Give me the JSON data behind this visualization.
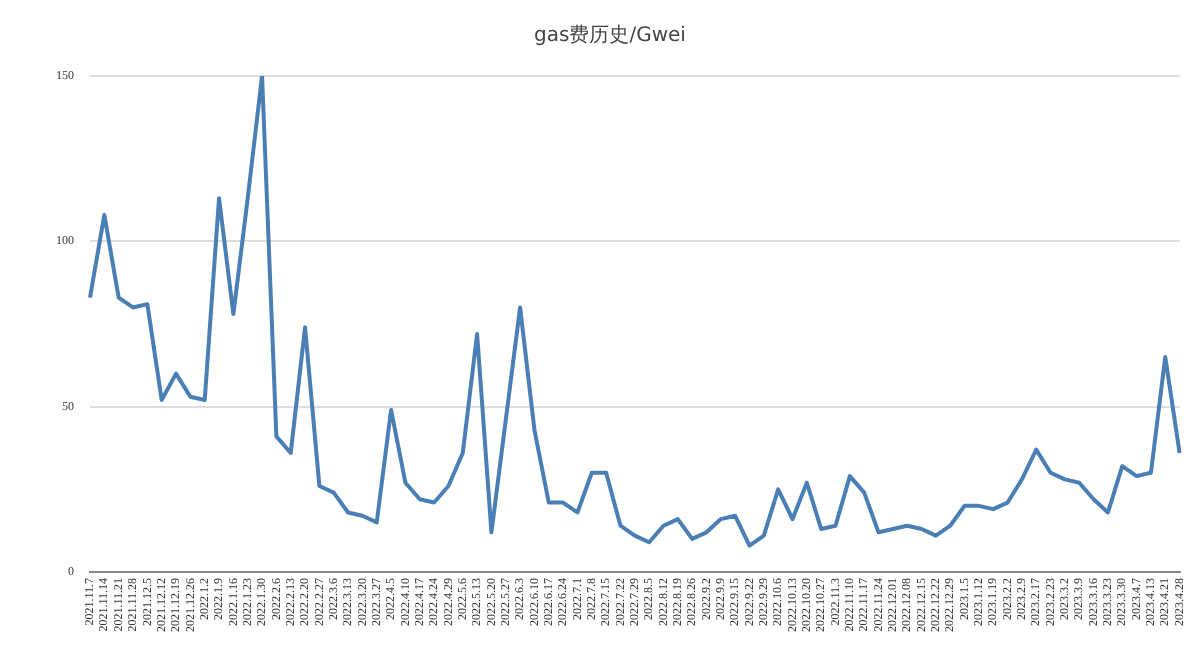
{
  "chart_data": {
    "type": "line",
    "title": "gas费历史/Gwei",
    "categories": [
      "2021.11.7",
      "2021.11.14",
      "2021.11.21",
      "2021.11.28",
      "2021.12.5",
      "2021.12.12",
      "2021.12.19",
      "2021.12.26",
      "2022.1.2",
      "2022.1.9",
      "2022.1.16",
      "2022.1.23",
      "2022.1.30",
      "2022.2.6",
      "2022.2.13",
      "2022.2.20",
      "2022.2.27",
      "2022.3.6",
      "2022.3.13",
      "2022.3.20",
      "2022.3.27",
      "2022.4.5",
      "2022.4.10",
      "2022.4.17",
      "2022.4.24",
      "2022.4.29",
      "2022.5.6",
      "2022.5.13",
      "2022.5.20",
      "2022.5.27",
      "2022.6.3",
      "2022.6.10",
      "2022.6.17",
      "2022.6.24",
      "2022.7.1",
      "2022.7.8",
      "2022.7.15",
      "2022.7.22",
      "2022.7.29",
      "2022.8.5",
      "2022.8.12",
      "2022.8.19",
      "2022.8.26",
      "2022.9.2",
      "2022.9.9",
      "2022.9.15",
      "2022.9.22",
      "2022.9.29",
      "2022.10.6",
      "2022.10.13",
      "2022.10.20",
      "2022.10.27",
      "2022.11.3",
      "2022.11.10",
      "2022.11.17",
      "2022.11.24",
      "2022.12.01",
      "2022.12.08",
      "2022.12.15",
      "2022.12.22",
      "2022.12.29",
      "2023.1.5",
      "2023.1.12",
      "2023.1.19",
      "2023.2.2",
      "2023.2.9",
      "2023.2.17",
      "2023.2.23",
      "2023.3.2",
      "2023.3.9",
      "2023.3.16",
      "2023.3.23",
      "2023.3.30",
      "2023.4.7",
      "2023.4.13",
      "2023.4.21",
      "2023.4.28"
    ],
    "series": [
      {
        "color": "#4a7fb5",
        "values": [
          83,
          108,
          83,
          80,
          81,
          52,
          60,
          53,
          52,
          113,
          78,
          113,
          150,
          41,
          36,
          74,
          26,
          24,
          18,
          17,
          15,
          49,
          27,
          22,
          21,
          26,
          36,
          72,
          12,
          46,
          80,
          43,
          21,
          21,
          18,
          30,
          30,
          14,
          11,
          9,
          14,
          16,
          10,
          12,
          16,
          17,
          8,
          11,
          25,
          16,
          27,
          13,
          14,
          29,
          24,
          12,
          13,
          14,
          13,
          11,
          14,
          20,
          20,
          19,
          21,
          28,
          37,
          30,
          28,
          27,
          22,
          18,
          32,
          29,
          30,
          65,
          36
        ]
      }
    ],
    "ylim": [
      0,
      150
    ],
    "yticks": [
      0,
      50,
      100,
      150
    ],
    "grid": "y",
    "marker": "none",
    "line_style": "solid",
    "legend": false
  }
}
